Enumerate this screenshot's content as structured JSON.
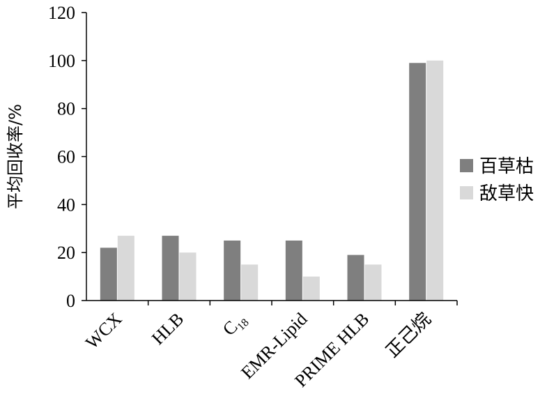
{
  "chart_data": {
    "type": "bar",
    "categories": [
      "WCX",
      "HLB",
      "C18",
      "EMR-Lipid",
      "PRIME HLB",
      "正己烷"
    ],
    "series": [
      {
        "name": "百草枯",
        "color": "#7f7f7f",
        "values": [
          22,
          27,
          25,
          25,
          19,
          99
        ]
      },
      {
        "name": "敌草快",
        "color": "#d9d9d9",
        "values": [
          27,
          20,
          15,
          10,
          15,
          100
        ]
      }
    ],
    "title": "",
    "xlabel": "",
    "ylabel": "平均回收率/%",
    "ylim": [
      0,
      120
    ],
    "yticks": [
      0,
      20,
      40,
      60,
      80,
      100,
      120
    ],
    "grid": false,
    "legend_position": "right"
  }
}
